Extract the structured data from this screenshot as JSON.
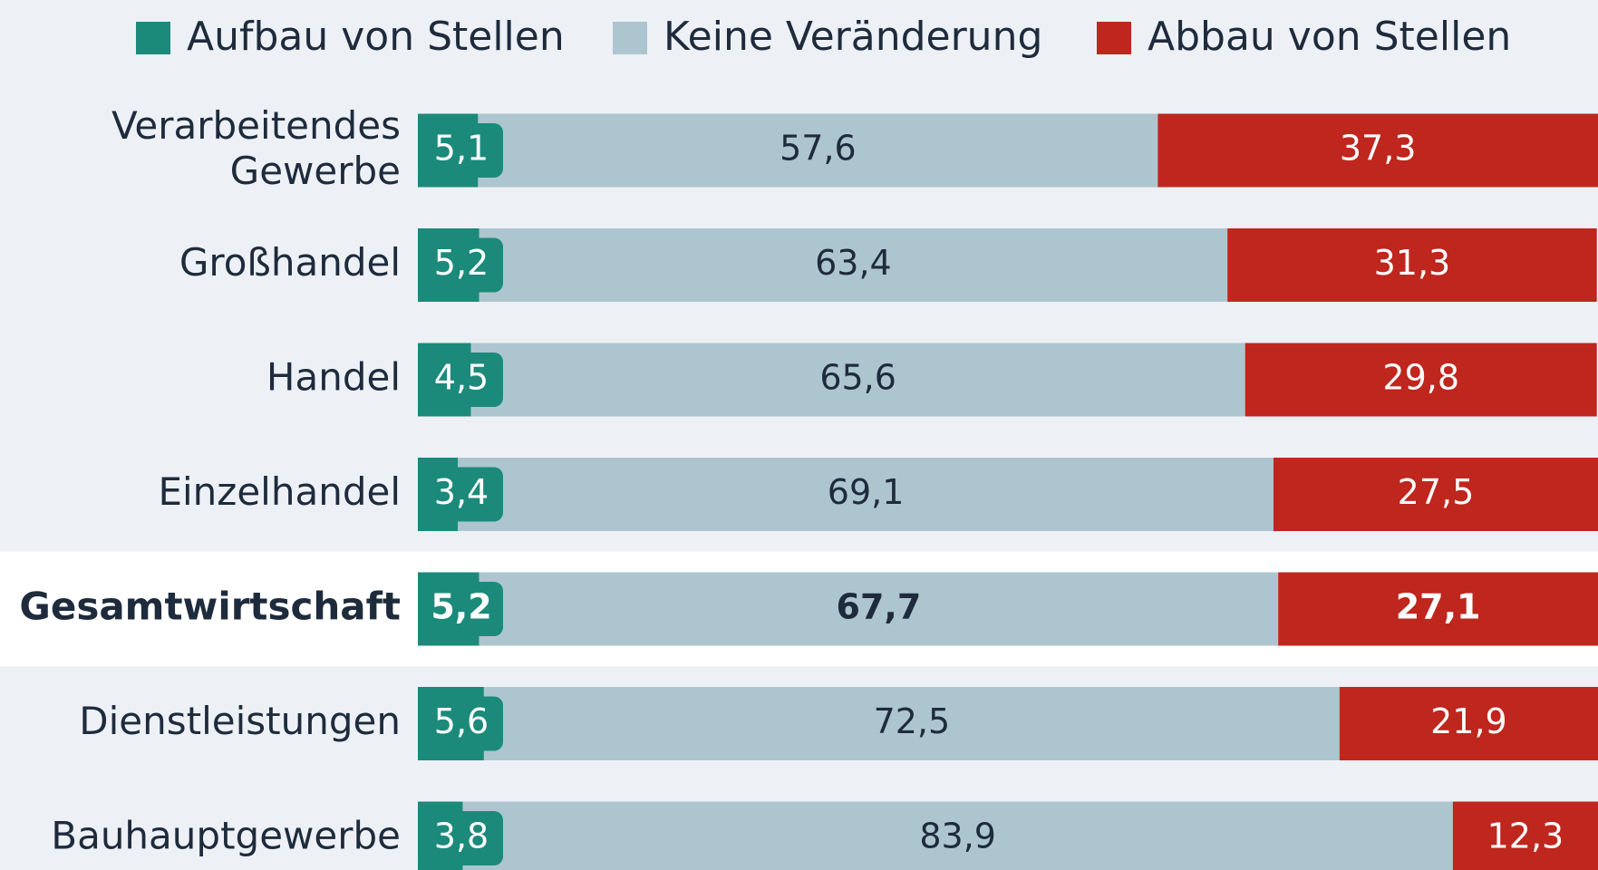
{
  "chart_data": {
    "type": "stacked_bar_horizontal",
    "categories": [
      "Verarbeitendes Gewerbe",
      "Großhandel",
      "Handel",
      "Einzelhandel",
      "Gesamtwirtschaft",
      "Dienstleistungen",
      "Bauhauptgewerbe"
    ],
    "highlight": 4,
    "xlim": [
      0,
      100
    ],
    "series": [
      {
        "name": "Aufbau von Stellen",
        "color": "#1b8a7b",
        "values": [
          5.1,
          5.2,
          4.5,
          3.4,
          5.2,
          5.6,
          3.8
        ],
        "value_labels": [
          "5,1",
          "5,2",
          "4,5",
          "3,4",
          "5,2",
          "5,6",
          "3,8"
        ]
      },
      {
        "name": "Keine Veränderung",
        "color": "#adc5cf",
        "values": [
          57.6,
          63.4,
          65.6,
          69.1,
          67.7,
          72.5,
          83.9
        ],
        "value_labels": [
          "57,6",
          "63,4",
          "65,6",
          "69,1",
          "67,7",
          "72,5",
          "83,9"
        ]
      },
      {
        "name": "Abbau von Stellen",
        "color": "#bf261d",
        "values": [
          37.3,
          31.3,
          29.8,
          27.5,
          27.1,
          21.9,
          12.3
        ],
        "value_labels": [
          "37,3",
          "31,3",
          "29,8",
          "27,5",
          "27,1",
          "21,9",
          "12,3"
        ]
      }
    ]
  }
}
